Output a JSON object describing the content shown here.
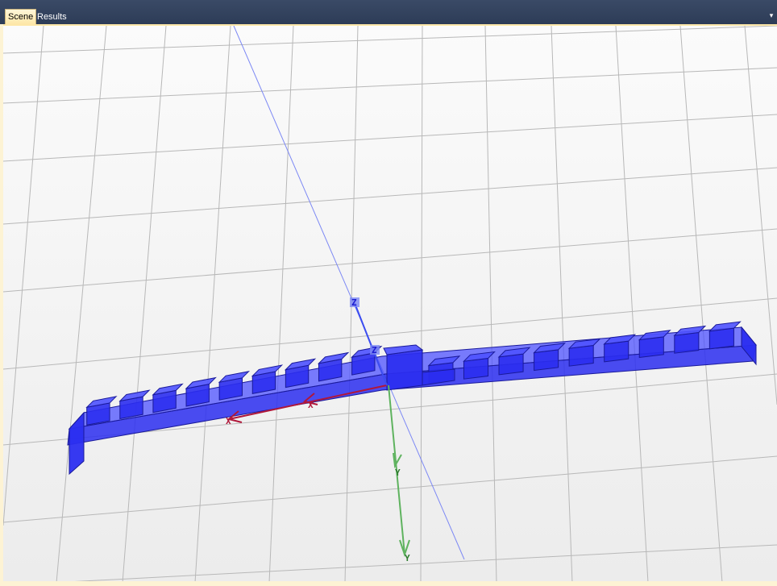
{
  "tabs": [
    {
      "label": "Scene",
      "active": true
    },
    {
      "label": "Results",
      "active": false
    }
  ],
  "tab_menu_icon": "pin-icon",
  "scene": {
    "axis_labels": {
      "x_local": "X",
      "x_global": "X",
      "y": "Y",
      "y_end": "Y",
      "z_local": "Z",
      "z_global": "Z"
    },
    "colors": {
      "model": "#2b2ef0",
      "model_light": "#4e52ff",
      "model_edge": "#1a1a9a",
      "axis_x": "#b0173a",
      "axis_y": "#5fb35f",
      "axis_z": "#7c88f4",
      "grid": "#b8b8b8"
    }
  }
}
